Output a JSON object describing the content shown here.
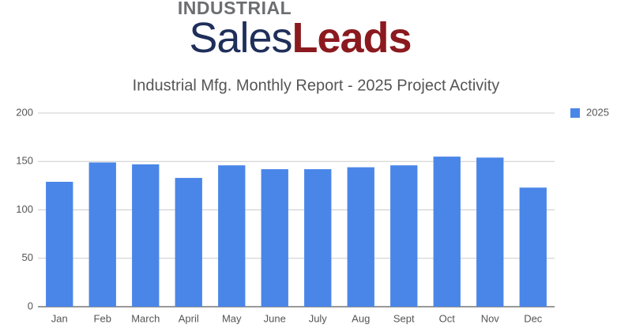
{
  "logo": {
    "top": "INDUSTRIAL",
    "sales": "Sales",
    "leads": "Leads"
  },
  "chart_data": {
    "type": "bar",
    "title": "Industrial Mfg. Monthly Report - 2025 Project Activity",
    "categories": [
      "Jan",
      "Feb",
      "March",
      "April",
      "May",
      "June",
      "July",
      "Aug",
      "Sept",
      "Oct",
      "Nov",
      "Dec"
    ],
    "series": [
      {
        "name": "2025",
        "color": "#4a86e8",
        "values": [
          129,
          149,
          147,
          133,
          146,
          142,
          142,
          144,
          146,
          155,
          154,
          123
        ]
      }
    ],
    "ylim": [
      0,
      200
    ],
    "yticks": [
      0,
      50,
      100,
      150,
      200
    ],
    "grid": true,
    "legend": "right"
  }
}
